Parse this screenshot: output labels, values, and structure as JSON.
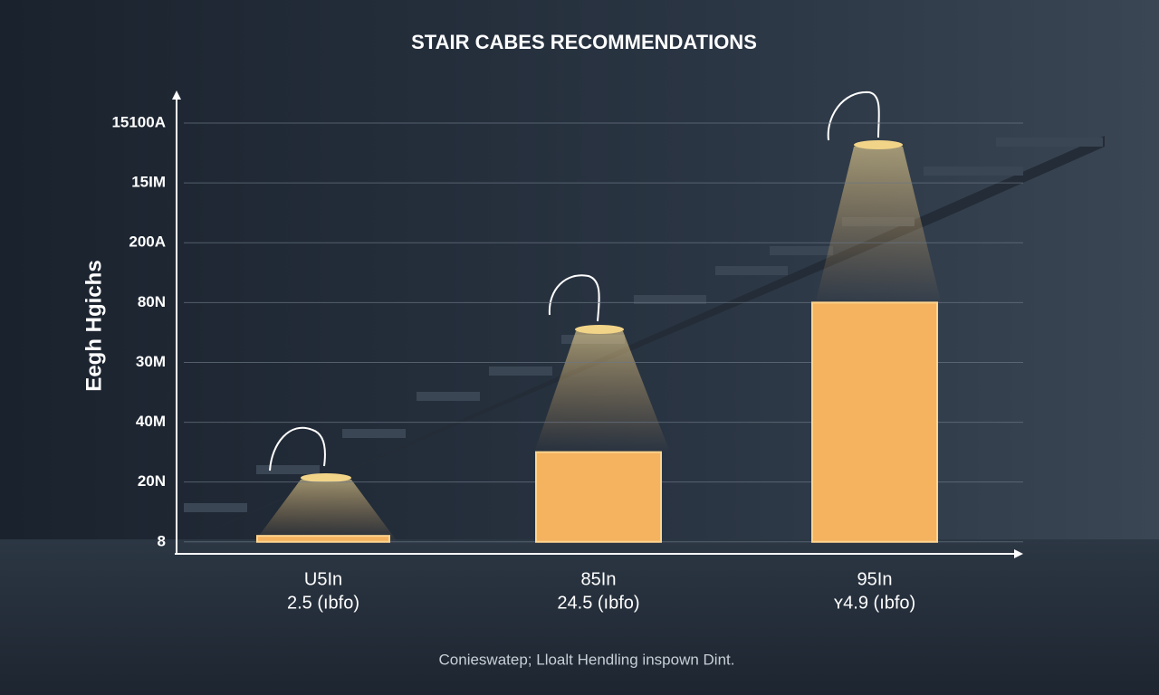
{
  "chart_data": {
    "type": "bar",
    "title": "STAIR CABES RECOMMENDATIONS",
    "ylabel": "Eegh Hgichs",
    "footer": "Conieswatep; Lloalt Hendling inspown Dint.",
    "categories": [
      "U5In",
      "85In",
      "95In"
    ],
    "category_notes": [
      "2.5 (ıbfo)",
      "24.5 (ıbfo)",
      "ʏ4.9 (ıbfo)"
    ],
    "values": [
      0.1,
      1.5,
      4.0
    ],
    "color": "#f5b35f",
    "ylim": [
      -0.2,
      7.5
    ],
    "yticks": [
      {
        "value": 0,
        "label": "8"
      },
      {
        "value": 1,
        "label": "20N"
      },
      {
        "value": 2,
        "label": "40M"
      },
      {
        "value": 3,
        "label": "30M"
      },
      {
        "value": 4,
        "label": "80N"
      },
      {
        "value": 5,
        "label": "200A"
      },
      {
        "value": 6,
        "label": "15IM"
      },
      {
        "value": 7,
        "label": "15100A"
      }
    ],
    "grid": true
  }
}
